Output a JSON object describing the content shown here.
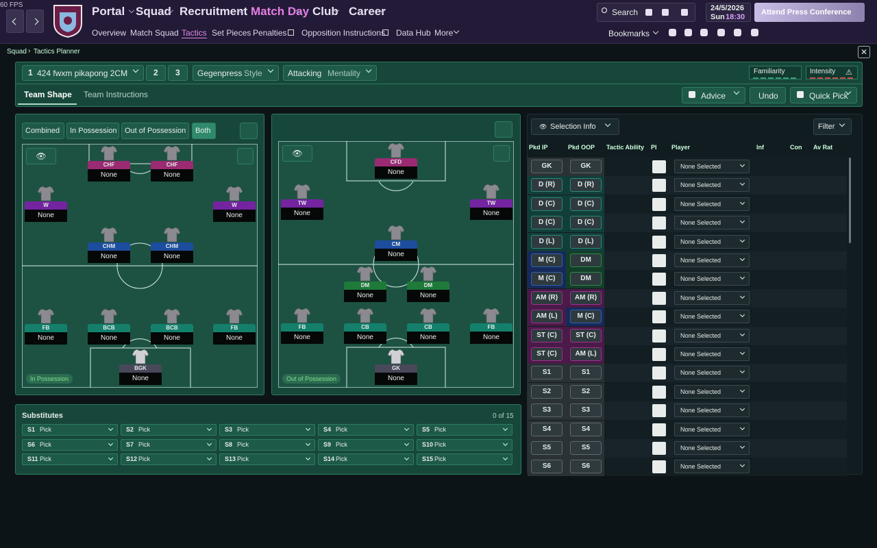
{
  "fps": "60 FPS",
  "nav": {
    "main": [
      "Portal",
      "Squad",
      "Recruitment",
      "Match Day",
      "Club",
      "Career"
    ],
    "sub": [
      "Overview",
      "Match Squad",
      "Tactics",
      "Set Pieces",
      "Penalties",
      "Opposition Instructions",
      "Data Hub",
      "More"
    ]
  },
  "top_right": {
    "search": "Search",
    "date": "24/5/2026",
    "day": "Sun",
    "time": "18:30",
    "press": "Attend Press Conference",
    "bookmarks": "Bookmarks"
  },
  "breadcrumb": [
    "Squad",
    "Tactics Planner"
  ],
  "tactic": {
    "slot": "1",
    "name": "424 fwxm pikapong 2CM",
    "other_slots": [
      "2",
      "3"
    ],
    "style_value": "Gegenpress",
    "style_label": "Style",
    "mentality_value": "Attacking",
    "mentality_label": "Mentality",
    "familiarity": "Familiarity",
    "intensity": "Intensity"
  },
  "tabs": [
    "Team Shape",
    "Team Instructions"
  ],
  "actions": [
    "Advice",
    "Undo",
    "Quick Pick"
  ],
  "view_modes": [
    "Combined",
    "In Possession",
    "Out of Possession",
    "Both"
  ],
  "pitch_ip": {
    "label": "In Possession",
    "players": [
      {
        "pos": "CHF",
        "player": "None"
      },
      {
        "pos": "CHF",
        "player": "None"
      },
      {
        "pos": "W",
        "player": "None"
      },
      {
        "pos": "W",
        "player": "None"
      },
      {
        "pos": "CHM",
        "player": "None"
      },
      {
        "pos": "CHM",
        "player": "None"
      },
      {
        "pos": "FB",
        "player": "None"
      },
      {
        "pos": "BCB",
        "player": "None"
      },
      {
        "pos": "BCB",
        "player": "None"
      },
      {
        "pos": "FB",
        "player": "None"
      },
      {
        "pos": "BGK",
        "player": "None"
      }
    ]
  },
  "pitch_oop": {
    "label": "Out of Possession",
    "players": [
      {
        "pos": "CFD",
        "player": "None"
      },
      {
        "pos": "TW",
        "player": "None"
      },
      {
        "pos": "TW",
        "player": "None"
      },
      {
        "pos": "CM",
        "player": "None"
      },
      {
        "pos": "DM",
        "player": "None"
      },
      {
        "pos": "DM",
        "player": "None"
      },
      {
        "pos": "FB",
        "player": "None"
      },
      {
        "pos": "CB",
        "player": "None"
      },
      {
        "pos": "CB",
        "player": "None"
      },
      {
        "pos": "FB",
        "player": "None"
      },
      {
        "pos": "GK",
        "player": "None"
      }
    ]
  },
  "substitutes": {
    "title": "Substitutes",
    "count": "0 of 15",
    "slots": [
      {
        "code": "S1",
        "value": "Pick"
      },
      {
        "code": "S2",
        "value": "Pick"
      },
      {
        "code": "S3",
        "value": "Pick"
      },
      {
        "code": "S4",
        "value": "Pick"
      },
      {
        "code": "S5",
        "value": "Pick"
      },
      {
        "code": "S6",
        "value": "Pick"
      },
      {
        "code": "S7",
        "value": "Pick"
      },
      {
        "code": "S8",
        "value": "Pick"
      },
      {
        "code": "S9",
        "value": "Pick"
      },
      {
        "code": "S10",
        "value": "Pick"
      },
      {
        "code": "S11",
        "value": "Pick"
      },
      {
        "code": "S12",
        "value": "Pick"
      },
      {
        "code": "S13",
        "value": "Pick"
      },
      {
        "code": "S14",
        "value": "Pick"
      },
      {
        "code": "S15",
        "value": "Pick"
      }
    ]
  },
  "selection": {
    "title": "Selection Info",
    "filter": "Filter",
    "columns": [
      "Pkd IP",
      "Pkd OOP",
      "Tactic Ability",
      "PI",
      "Player",
      "Inf",
      "Con",
      "Av Rat"
    ],
    "rows": [
      {
        "ip": "GK",
        "oop": "GK",
        "player": "None Selected"
      },
      {
        "ip": "D (R)",
        "oop": "D (R)",
        "player": "None Selected"
      },
      {
        "ip": "D (C)",
        "oop": "D (C)",
        "player": "None Selected"
      },
      {
        "ip": "D (C)",
        "oop": "D (C)",
        "player": "None Selected"
      },
      {
        "ip": "D (L)",
        "oop": "D (L)",
        "player": "None Selected"
      },
      {
        "ip": "M (C)",
        "oop": "DM",
        "player": "None Selected"
      },
      {
        "ip": "M (C)",
        "oop": "DM",
        "player": "None Selected"
      },
      {
        "ip": "AM (R)",
        "oop": "AM (R)",
        "player": "None Selected"
      },
      {
        "ip": "AM (L)",
        "oop": "M (C)",
        "player": "None Selected"
      },
      {
        "ip": "ST (C)",
        "oop": "ST (C)",
        "player": "None Selected"
      },
      {
        "ip": "ST (C)",
        "oop": "AM (L)",
        "player": "None Selected"
      },
      {
        "ip": "S1",
        "oop": "S1",
        "player": "None Selected"
      },
      {
        "ip": "S2",
        "oop": "S2",
        "player": "None Selected"
      },
      {
        "ip": "S3",
        "oop": "S3",
        "player": "None Selected"
      },
      {
        "ip": "S4",
        "oop": "S4",
        "player": "None Selected"
      },
      {
        "ip": "S5",
        "oop": "S5",
        "player": "None Selected"
      },
      {
        "ip": "S6",
        "oop": "S6",
        "player": "None Selected"
      }
    ]
  }
}
